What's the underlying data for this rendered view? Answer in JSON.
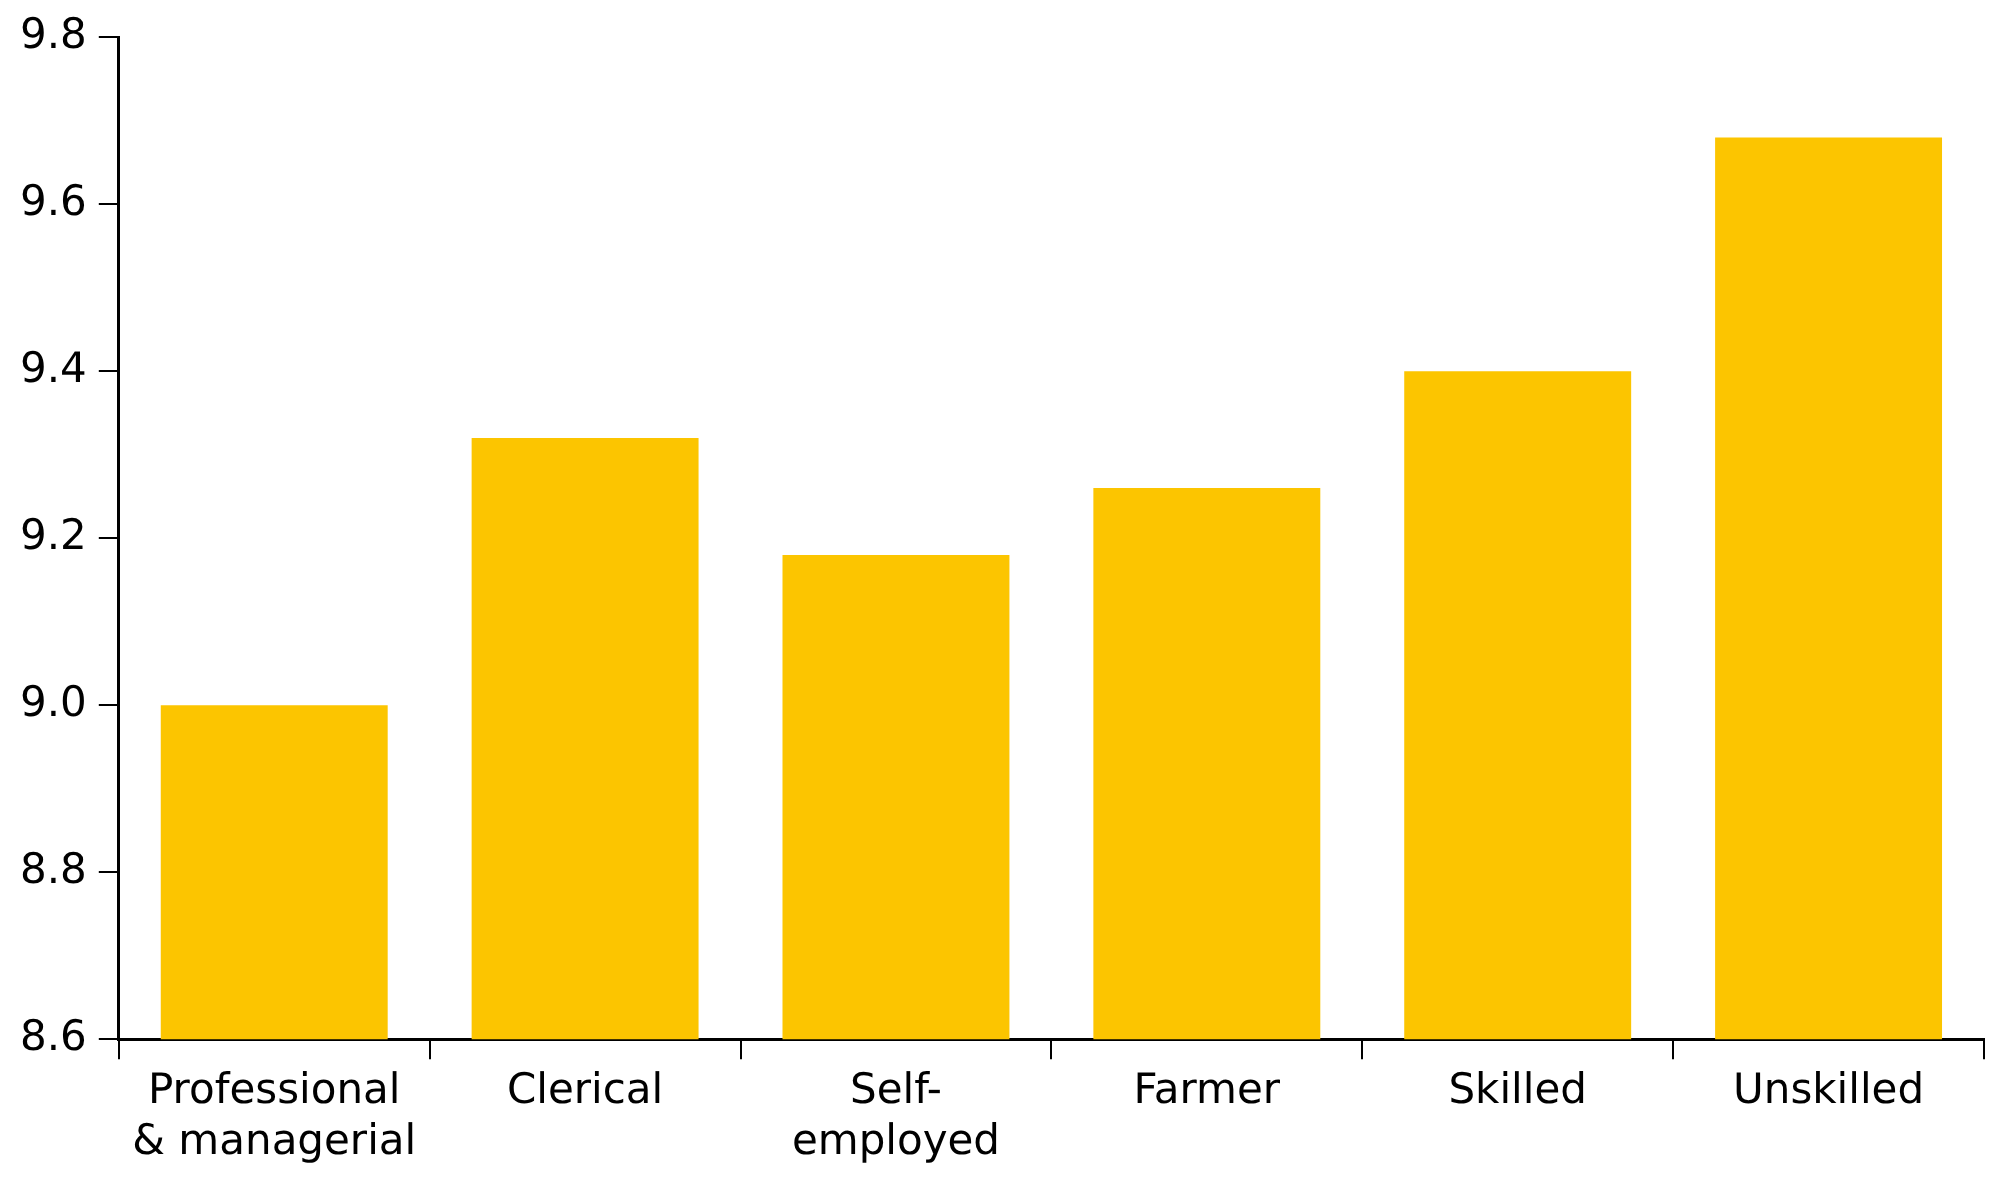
{
  "chart_data": {
    "type": "bar",
    "categories": [
      "Professional & managerial",
      "Clerical",
      "Self-employed",
      "Farmer",
      "Skilled",
      "Unskilled"
    ],
    "values": [
      9.0,
      9.32,
      9.18,
      9.26,
      9.4,
      9.68
    ],
    "color": "#fcc500",
    "ylim": [
      8.6,
      9.8
    ],
    "yticks": [
      {
        "value": 8.6,
        "label": "8.6"
      },
      {
        "value": 8.8,
        "label": "8.8"
      },
      {
        "value": 9.0,
        "label": "9.0"
      },
      {
        "value": 9.2,
        "label": "9.2"
      },
      {
        "value": 9.4,
        "label": "9.4"
      },
      {
        "value": 9.6,
        "label": "9.6"
      },
      {
        "value": 9.8,
        "label": "9.8"
      }
    ],
    "grid": false,
    "legend": false
  }
}
